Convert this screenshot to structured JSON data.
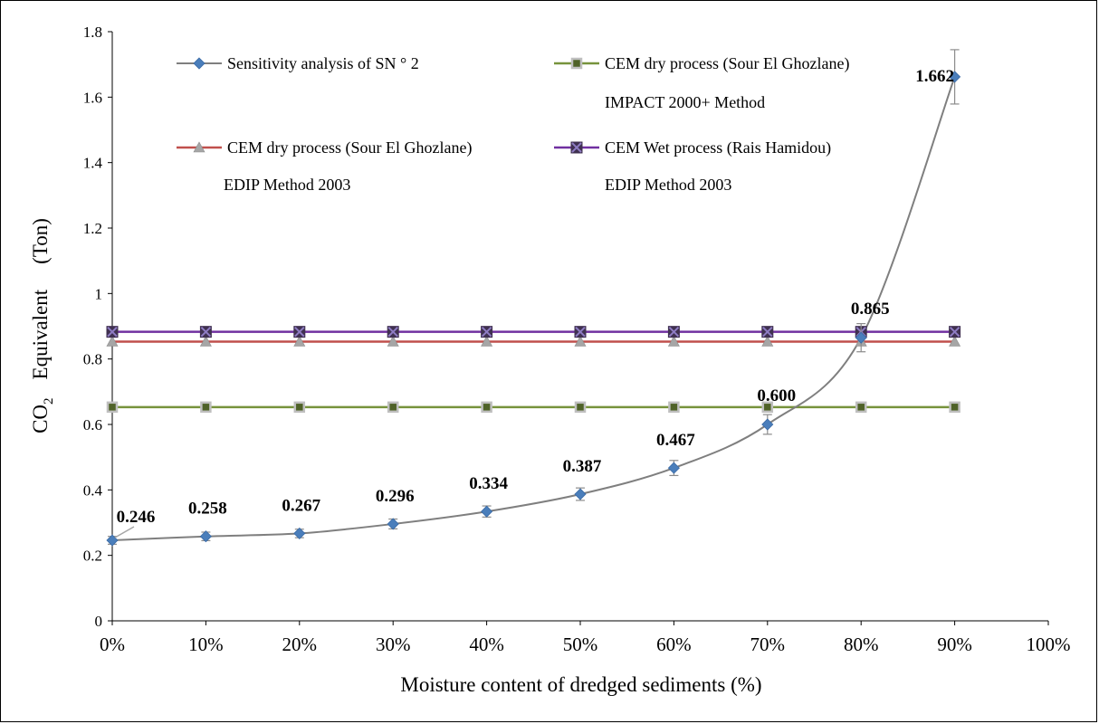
{
  "chart_data": {
    "type": "line",
    "title": "",
    "xlabel": "Moisture content of dredged sediments (%)",
    "ylabel": {
      "prefix": "CO",
      "subscript": "2",
      "middle": "Equivalent",
      "unit": "(Ton)"
    },
    "x_ticks": [
      "0%",
      "10%",
      "20%",
      "30%",
      "40%",
      "50%",
      "60%",
      "70%",
      "80%",
      "90%",
      "100%"
    ],
    "x_range": [
      0,
      100
    ],
    "y_range": [
      0,
      1.8
    ],
    "y_ticks": [
      "0",
      "0.2",
      "0.4",
      "0.6",
      "0.8",
      "1",
      "1.2",
      "1.4",
      "1.6",
      "1.8"
    ],
    "grid": false,
    "legend_position": "top",
    "series": [
      {
        "name": "Sensitivity analysis of SN ° 2",
        "note": "",
        "color": "#4A7EBB",
        "line_color": "#7F7F7F",
        "marker": "diamond",
        "smooth": true,
        "error_bars": true,
        "x": [
          0,
          10,
          20,
          30,
          40,
          50,
          60,
          70,
          80,
          90
        ],
        "values": [
          0.246,
          0.258,
          0.267,
          0.296,
          0.334,
          0.387,
          0.467,
          0.6,
          0.865,
          1.662
        ],
        "errors": [
          0.012,
          0.013,
          0.013,
          0.015,
          0.017,
          0.019,
          0.023,
          0.03,
          0.043,
          0.083
        ],
        "data_labels": [
          "0.246",
          "0.258",
          "0.267",
          "0.296",
          "0.334",
          "0.387",
          "0.467",
          "0.600",
          "0.865",
          "1.662"
        ]
      },
      {
        "name": "CEM dry process (Sour El Ghozlane)",
        "note": "IMPACT 2000+ Method",
        "color": "#77933C",
        "marker_fill": "#4F6228",
        "marker_edge": "#BFBFBF",
        "marker": "square",
        "x": [
          0,
          10,
          20,
          30,
          40,
          50,
          60,
          70,
          80,
          90
        ],
        "values": [
          0.653,
          0.653,
          0.653,
          0.653,
          0.653,
          0.653,
          0.653,
          0.653,
          0.653,
          0.653
        ]
      },
      {
        "name": "CEM dry process (Sour El Ghozlane)",
        "note": "EDIP Method 2003",
        "color": "#C0504D",
        "marker_fill": "#A6A6A6",
        "marker": "triangle",
        "x": [
          0,
          10,
          20,
          30,
          40,
          50,
          60,
          70,
          80,
          90
        ],
        "values": [
          0.853,
          0.853,
          0.853,
          0.853,
          0.853,
          0.853,
          0.853,
          0.853,
          0.853,
          0.853
        ]
      },
      {
        "name": "CEM Wet process (Rais Hamidou)",
        "note": "EDIP Method 2003",
        "color": "#7030A0",
        "marker_fill": "#403151",
        "marker": "x-square",
        "x": [
          0,
          10,
          20,
          30,
          40,
          50,
          60,
          70,
          80,
          90
        ],
        "values": [
          0.883,
          0.883,
          0.883,
          0.883,
          0.883,
          0.883,
          0.883,
          0.883,
          0.883,
          0.883
        ]
      }
    ]
  }
}
